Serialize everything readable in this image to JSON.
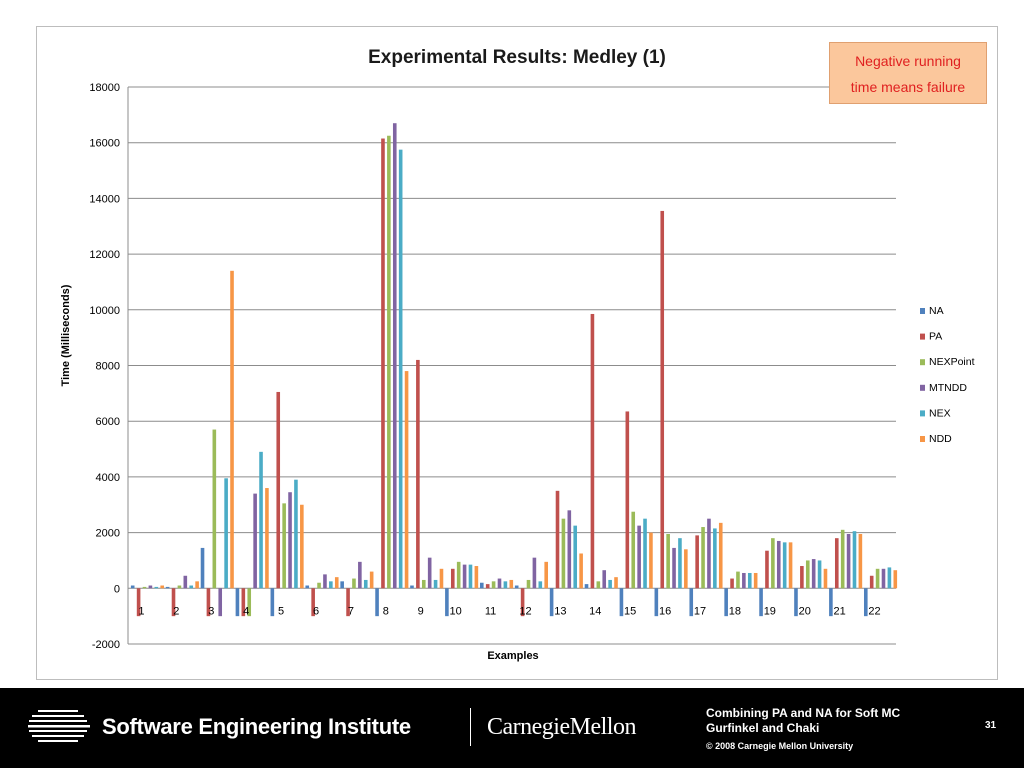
{
  "slide": {
    "note": [
      "Negative running",
      "time means failure"
    ],
    "footer": {
      "org": "Software Engineering Institute",
      "university": "CarnegieMellon",
      "title_line1": "Combining PA and NA for Soft MC",
      "title_line2": "Gurfinkel and Chaki",
      "copyright": "© 2008 Carnegie Mellon University",
      "page": "31"
    }
  },
  "chart_data": {
    "type": "bar",
    "title": "Experimental Results: Medley (1)",
    "xlabel": "Examples",
    "ylabel": "Time (Milliseconds)",
    "ylim": [
      -2000,
      18000
    ],
    "yticks": [
      -2000,
      0,
      2000,
      4000,
      6000,
      8000,
      10000,
      12000,
      14000,
      16000,
      18000
    ],
    "grid": true,
    "legend_position": "right",
    "categories": [
      "1",
      "2",
      "3",
      "4",
      "5",
      "6",
      "7",
      "8",
      "9",
      "10",
      "11",
      "12",
      "13",
      "14",
      "15",
      "16",
      "17",
      "18",
      "19",
      "20",
      "21",
      "22"
    ],
    "series": [
      {
        "name": "NA",
        "color": "#4f81bd",
        "values": [
          100,
          50,
          1450,
          -1000,
          -1000,
          100,
          250,
          -1000,
          100,
          -1000,
          200,
          100,
          -1000,
          150,
          -1000,
          -1000,
          -1000,
          -1000,
          -1000,
          -1000,
          -1000,
          -1000
        ]
      },
      {
        "name": "PA",
        "color": "#c0504d",
        "values": [
          -1000,
          -1000,
          -1000,
          -1000,
          7050,
          -1000,
          -1000,
          16150,
          8200,
          700,
          150,
          -1000,
          3500,
          9850,
          6350,
          13550,
          1900,
          350,
          1350,
          800,
          1800,
          450
        ]
      },
      {
        "name": "NEXPoint",
        "color": "#9bbb59",
        "values": [
          50,
          100,
          5700,
          -1000,
          3050,
          200,
          350,
          16250,
          300,
          950,
          250,
          300,
          2500,
          250,
          2750,
          1950,
          2200,
          600,
          1800,
          1000,
          2100,
          700
        ]
      },
      {
        "name": "MTNDD",
        "color": "#8064a2",
        "values": [
          100,
          450,
          -1000,
          3400,
          3450,
          500,
          950,
          16700,
          1100,
          850,
          350,
          1100,
          2800,
          650,
          2250,
          1450,
          2500,
          550,
          1700,
          1050,
          1950,
          700
        ]
      },
      {
        "name": "NEX",
        "color": "#4bacc6",
        "values": [
          50,
          100,
          3950,
          4900,
          3900,
          250,
          300,
          15750,
          300,
          850,
          250,
          250,
          2250,
          300,
          2500,
          1800,
          2150,
          550,
          1650,
          1000,
          2050,
          750
        ]
      },
      {
        "name": "NDD",
        "color": "#f79646",
        "values": [
          100,
          250,
          11400,
          3600,
          3000,
          400,
          600,
          7800,
          700,
          800,
          300,
          950,
          1250,
          400,
          2000,
          1400,
          2350,
          550,
          1650,
          700,
          1950,
          650
        ]
      }
    ]
  }
}
